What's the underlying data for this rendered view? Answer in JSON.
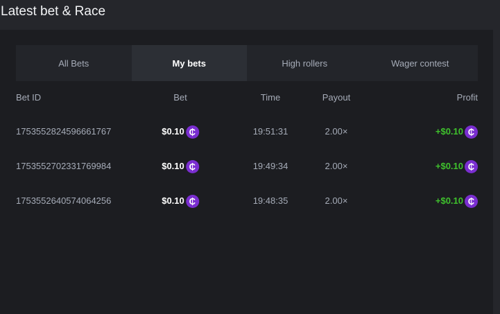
{
  "header": {
    "title": "Latest bet & Race"
  },
  "tabs": [
    {
      "label": "All Bets"
    },
    {
      "label": "My bets",
      "active": true
    },
    {
      "label": "High rollers"
    },
    {
      "label": "Wager contest"
    }
  ],
  "table": {
    "columns": [
      "Bet ID",
      "Bet",
      "Time",
      "Payout",
      "Profit"
    ],
    "coin_symbol": "₵",
    "rows": [
      {
        "id": "1753552824596661767",
        "bet": "$0.10",
        "time": "19:51:31",
        "payout": "2.00×",
        "profit": "+$0.10"
      },
      {
        "id": "1753552702331769984",
        "bet": "$0.10",
        "time": "19:49:34",
        "payout": "2.00×",
        "profit": "+$0.10"
      },
      {
        "id": "1753552640574064256",
        "bet": "$0.10",
        "time": "19:48:35",
        "payout": "2.00×",
        "profit": "+$0.10"
      }
    ]
  },
  "colors": {
    "accent_coin": "#7a2ed0",
    "profit": "#3fc22d",
    "active_tab": "#2c2f35"
  }
}
